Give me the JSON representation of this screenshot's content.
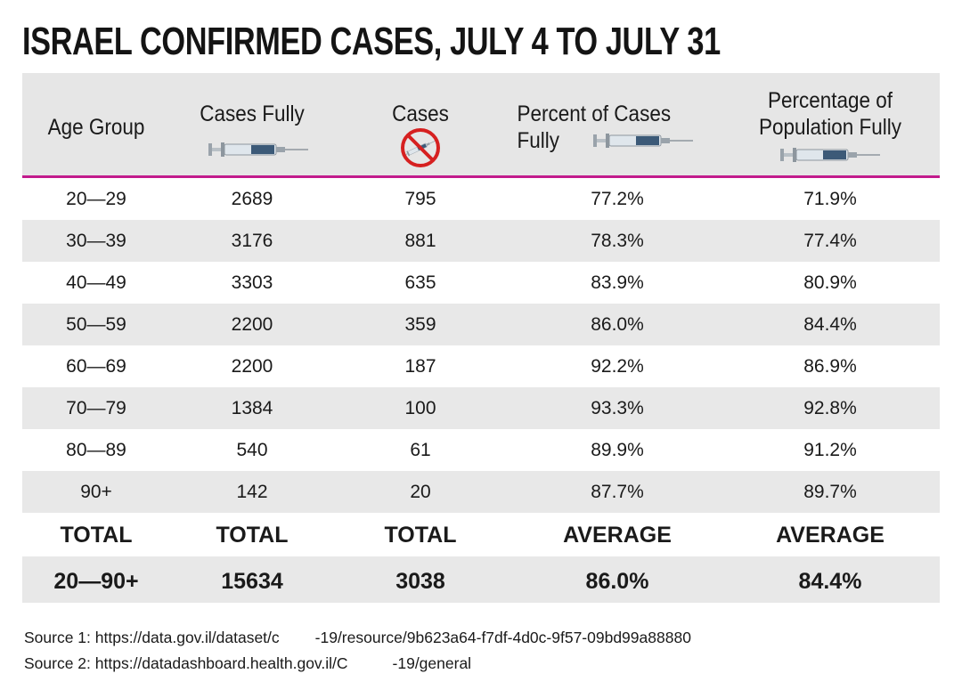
{
  "header": {
    "title": "ISRAEL CONFIRMED CASES, JULY 4 TO JULY 31"
  },
  "table": {
    "columns": [
      "Age Group",
      "Cases Fully",
      "Cases",
      "Percent of Cases Fully",
      "Percentage of Population Fully"
    ],
    "rows": [
      [
        "20—29",
        "2689",
        "795",
        "77.2%",
        "71.9%"
      ],
      [
        "30—39",
        "3176",
        "881",
        "78.3%",
        "77.4%"
      ],
      [
        "40—49",
        "3303",
        "635",
        "83.9%",
        "80.9%"
      ],
      [
        "50—59",
        "2200",
        "359",
        "86.0%",
        "84.4%"
      ],
      [
        "60—69",
        "2200",
        "187",
        "92.2%",
        "86.9%"
      ],
      [
        "70—79",
        "1384",
        "100",
        "93.3%",
        "92.8%"
      ],
      [
        "80—89",
        "540",
        "61",
        "89.9%",
        "91.2%"
      ],
      [
        "90+",
        "142",
        "20",
        "87.7%",
        "89.7%"
      ]
    ],
    "summary_labels": [
      "TOTAL",
      "TOTAL",
      "TOTAL",
      "AVERAGE",
      "AVERAGE"
    ],
    "summary_values": [
      "20—90+",
      "15634",
      "3038",
      "86.0%",
      "84.4%"
    ]
  },
  "sources": [
    [
      "Source 1: https://data.gov.il/dataset/c",
      "-19/resource/9b623a64-f7df-4d0c-9f57-09bd99a88880"
    ],
    [
      "Source 2: https://datadashboard.health.gov.il/C",
      "-19/general"
    ]
  ]
}
